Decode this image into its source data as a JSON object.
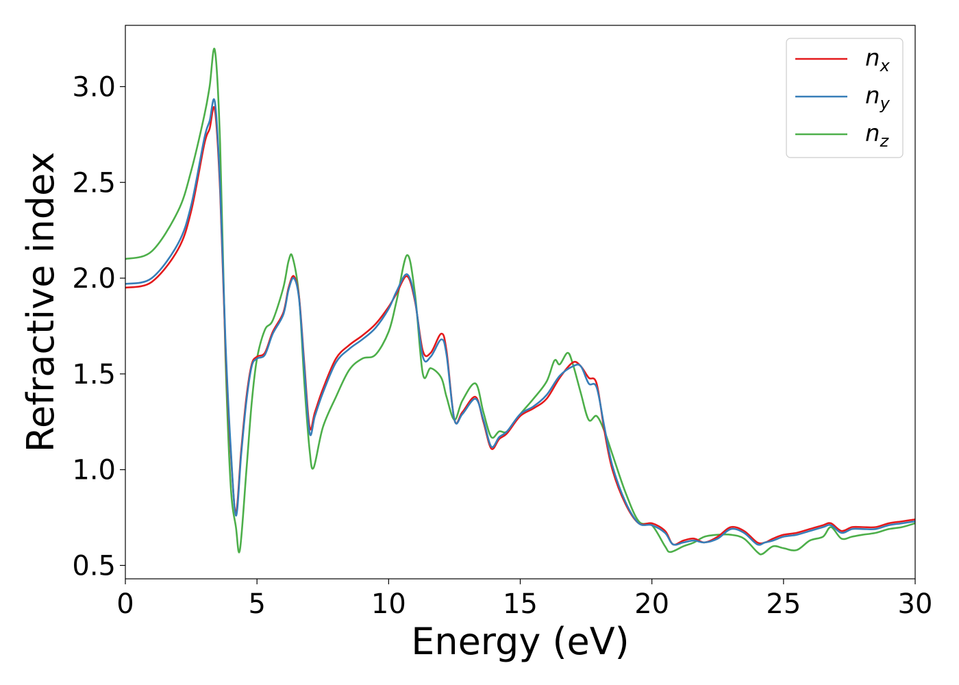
{
  "chart_data": {
    "type": "line",
    "xlabel": "Energy (eV)",
    "ylabel": "Refractive index",
    "xlim": [
      0,
      30
    ],
    "ylim": [
      0.43,
      3.32
    ],
    "xticks": [
      0,
      5,
      10,
      15,
      20,
      25,
      30
    ],
    "xtick_labels": [
      "0",
      "5",
      "10",
      "15",
      "20",
      "25",
      "30"
    ],
    "yticks": [
      0.5,
      1.0,
      1.5,
      2.0,
      2.5,
      3.0
    ],
    "ytick_labels": [
      "0.5",
      "1.0",
      "1.5",
      "2.0",
      "2.5",
      "3.0"
    ],
    "grid": false,
    "legend_position": "top-right",
    "series": [
      {
        "name": "n_x",
        "label_base": "n",
        "label_sub": "x",
        "color": "#e41a1c",
        "x": [
          0,
          1,
          2,
          2.5,
          3,
          3.2,
          3.4,
          3.6,
          3.8,
          4.0,
          4.2,
          4.4,
          4.6,
          4.8,
          5.0,
          5.3,
          5.6,
          6.0,
          6.2,
          6.4,
          6.6,
          6.8,
          7.0,
          7.2,
          7.5,
          8.0,
          8.5,
          9.0,
          9.5,
          10.0,
          10.3,
          10.7,
          11.0,
          11.3,
          11.6,
          12.0,
          12.2,
          12.5,
          12.8,
          13.3,
          13.6,
          13.9,
          14.2,
          14.5,
          15.0,
          15.5,
          16.0,
          16.5,
          17.0,
          17.3,
          17.6,
          17.9,
          18.2,
          18.5,
          19.0,
          19.5,
          20.0,
          20.5,
          20.8,
          21.2,
          21.6,
          22.0,
          22.5,
          23.0,
          23.5,
          24.0,
          24.3,
          24.6,
          25.0,
          25.5,
          26.0,
          26.5,
          26.8,
          27.2,
          27.6,
          28.0,
          28.5,
          29.0,
          29.5,
          30.0
        ],
        "y": [
          1.95,
          1.98,
          2.15,
          2.35,
          2.7,
          2.78,
          2.88,
          2.45,
          1.65,
          1.1,
          0.78,
          1.1,
          1.38,
          1.55,
          1.59,
          1.61,
          1.72,
          1.82,
          1.95,
          2.01,
          1.9,
          1.55,
          1.22,
          1.3,
          1.42,
          1.58,
          1.65,
          1.7,
          1.76,
          1.85,
          1.92,
          2.01,
          1.88,
          1.62,
          1.61,
          1.71,
          1.62,
          1.26,
          1.3,
          1.38,
          1.25,
          1.11,
          1.16,
          1.19,
          1.28,
          1.32,
          1.37,
          1.48,
          1.56,
          1.54,
          1.48,
          1.45,
          1.2,
          1.0,
          0.82,
          0.72,
          0.72,
          0.68,
          0.61,
          0.63,
          0.64,
          0.62,
          0.65,
          0.7,
          0.68,
          0.62,
          0.62,
          0.64,
          0.66,
          0.67,
          0.69,
          0.71,
          0.72,
          0.68,
          0.7,
          0.7,
          0.7,
          0.72,
          0.73,
          0.74
        ]
      },
      {
        "name": "n_y",
        "label_base": "n",
        "label_sub": "y",
        "color": "#377eb8",
        "x": [
          0,
          1,
          2,
          2.5,
          3,
          3.2,
          3.4,
          3.6,
          3.8,
          4.0,
          4.2,
          4.4,
          4.6,
          4.8,
          5.0,
          5.3,
          5.6,
          6.0,
          6.2,
          6.4,
          6.6,
          6.8,
          7.0,
          7.2,
          7.5,
          8.0,
          8.5,
          9.0,
          9.5,
          10.0,
          10.3,
          10.7,
          11.0,
          11.3,
          11.6,
          12.0,
          12.2,
          12.5,
          12.8,
          13.3,
          13.6,
          13.9,
          14.2,
          14.5,
          15.0,
          15.5,
          16.0,
          16.5,
          17.0,
          17.3,
          17.6,
          17.9,
          18.2,
          18.5,
          19.0,
          19.5,
          20.0,
          20.5,
          20.8,
          21.2,
          21.6,
          22.0,
          22.5,
          23.0,
          23.5,
          24.0,
          24.3,
          24.6,
          25.0,
          25.5,
          26.0,
          26.5,
          26.8,
          27.2,
          27.6,
          28.0,
          28.5,
          29.0,
          29.5,
          30.0
        ],
        "y": [
          1.97,
          2.0,
          2.18,
          2.38,
          2.73,
          2.82,
          2.92,
          2.48,
          1.68,
          1.12,
          0.76,
          1.08,
          1.36,
          1.54,
          1.58,
          1.6,
          1.71,
          1.81,
          1.94,
          2.0,
          1.89,
          1.53,
          1.19,
          1.28,
          1.4,
          1.56,
          1.63,
          1.68,
          1.74,
          1.84,
          1.93,
          2.02,
          1.89,
          1.59,
          1.59,
          1.68,
          1.6,
          1.26,
          1.29,
          1.37,
          1.26,
          1.12,
          1.17,
          1.2,
          1.29,
          1.33,
          1.39,
          1.49,
          1.54,
          1.54,
          1.45,
          1.43,
          1.22,
          1.02,
          0.83,
          0.72,
          0.71,
          0.67,
          0.61,
          0.62,
          0.63,
          0.62,
          0.64,
          0.69,
          0.67,
          0.61,
          0.62,
          0.63,
          0.65,
          0.66,
          0.68,
          0.7,
          0.71,
          0.67,
          0.69,
          0.69,
          0.69,
          0.71,
          0.72,
          0.73
        ]
      },
      {
        "name": "n_z",
        "label_base": "n",
        "label_sub": "z",
        "color": "#4daf4a",
        "x": [
          0,
          1,
          2,
          2.5,
          3,
          3.2,
          3.4,
          3.6,
          3.8,
          4.0,
          4.2,
          4.35,
          4.6,
          4.8,
          5.0,
          5.3,
          5.6,
          6.0,
          6.2,
          6.35,
          6.6,
          6.8,
          7.0,
          7.15,
          7.5,
          8.0,
          8.5,
          9.0,
          9.5,
          10.0,
          10.3,
          10.7,
          11.0,
          11.3,
          11.6,
          12.0,
          12.2,
          12.5,
          12.8,
          13.3,
          13.6,
          13.9,
          14.2,
          14.5,
          15.0,
          15.5,
          16.0,
          16.3,
          16.5,
          16.8,
          17.0,
          17.3,
          17.6,
          17.9,
          18.2,
          18.5,
          19.0,
          19.5,
          20.0,
          20.5,
          20.7,
          21.2,
          21.6,
          22.0,
          22.5,
          23.0,
          23.5,
          24.0,
          24.2,
          24.6,
          25.0,
          25.5,
          26.0,
          26.5,
          26.8,
          27.2,
          27.6,
          28.0,
          28.5,
          29.0,
          29.5,
          30.0
        ],
        "y": [
          2.1,
          2.14,
          2.35,
          2.56,
          2.85,
          3.0,
          3.19,
          2.7,
          1.6,
          0.92,
          0.7,
          0.58,
          1.0,
          1.35,
          1.58,
          1.73,
          1.78,
          1.95,
          2.09,
          2.11,
          1.9,
          1.45,
          1.1,
          1.01,
          1.22,
          1.38,
          1.52,
          1.58,
          1.6,
          1.72,
          1.88,
          2.12,
          1.92,
          1.5,
          1.53,
          1.48,
          1.38,
          1.26,
          1.36,
          1.45,
          1.3,
          1.17,
          1.2,
          1.2,
          1.29,
          1.37,
          1.46,
          1.57,
          1.55,
          1.61,
          1.55,
          1.4,
          1.26,
          1.28,
          1.2,
          1.08,
          0.88,
          0.73,
          0.71,
          0.6,
          0.57,
          0.6,
          0.62,
          0.65,
          0.66,
          0.66,
          0.64,
          0.57,
          0.56,
          0.6,
          0.59,
          0.58,
          0.63,
          0.65,
          0.7,
          0.64,
          0.65,
          0.66,
          0.67,
          0.69,
          0.7,
          0.72
        ]
      }
    ]
  }
}
